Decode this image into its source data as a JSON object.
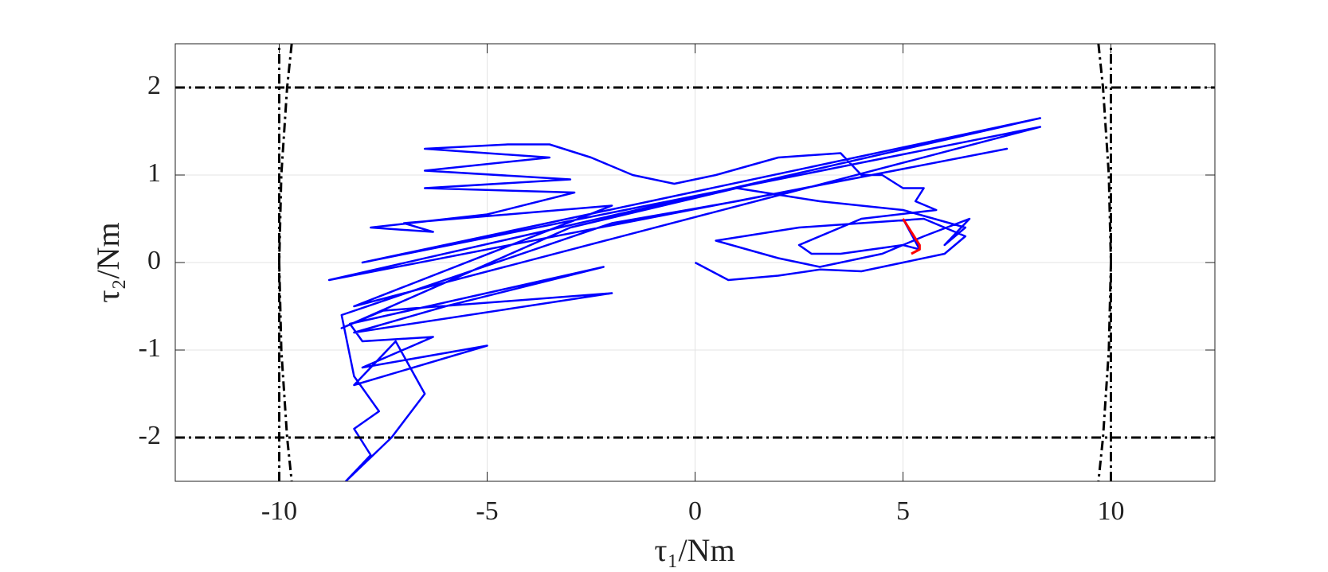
{
  "chart_data": {
    "type": "line",
    "xlabel": "τ₁/Nm",
    "ylabel": "τ₂/Nm",
    "xlim": [
      -12.5,
      12.5
    ],
    "ylim": [
      -2.5,
      2.5
    ],
    "xticks": [
      -10,
      -5,
      0,
      5,
      10
    ],
    "yticks": [
      -2,
      -1,
      0,
      1,
      2
    ],
    "grid": true,
    "series": [
      {
        "color": "#0000ff",
        "style": "solid",
        "width": 2.5,
        "x": [
          0,
          0.8,
          2,
          3,
          4,
          5,
          6,
          6.5,
          5.5,
          4,
          2.5,
          0.5,
          2,
          3,
          4.5,
          5.5,
          6.6,
          6,
          6.5,
          5,
          3,
          1,
          -3,
          -8.5,
          -7.5,
          -2,
          -8.2,
          -6,
          -2.2,
          -8.3,
          -8,
          -6.3,
          -8,
          -5,
          -8.2,
          -7.2,
          -6.5,
          -7.3,
          -8.4,
          -7.8,
          -8.2,
          -7.6,
          -8.2,
          -8.5,
          -2,
          1,
          7.5,
          -8.8,
          8.3,
          -8,
          8.3,
          -8.2,
          -2,
          -7,
          -6.3,
          -7.8,
          -5,
          -2.9,
          -6.5,
          -3,
          -6.5,
          -3.5,
          -6.5,
          -4.5,
          -3.5,
          -2.5,
          -1.5,
          -0.5,
          0.5,
          2,
          3.5,
          4,
          4.5,
          5,
          5.5,
          5.3,
          5.8,
          4,
          2.5,
          2.8,
          3.5,
          5,
          5.4,
          5
        ],
        "values": [
          0,
          -0.2,
          -0.15,
          -0.08,
          -0.1,
          0,
          0.1,
          0.3,
          0.5,
          0.45,
          0.4,
          0.25,
          0.05,
          -0.05,
          0.1,
          0.3,
          0.5,
          0.2,
          0.4,
          0.6,
          0.7,
          0.85,
          0.4,
          -0.75,
          -0.55,
          -0.35,
          -0.8,
          -0.5,
          -0.05,
          -0.7,
          -0.9,
          -0.85,
          -1.2,
          -0.95,
          -1.4,
          -0.9,
          -1.5,
          -2,
          -2.5,
          -2.2,
          -1.9,
          -1.7,
          -1.3,
          -0.6,
          0.45,
          0.7,
          1.3,
          -0.2,
          1.65,
          0,
          1.55,
          -0.5,
          0.65,
          0.45,
          0.35,
          0.4,
          0.55,
          0.8,
          0.85,
          0.95,
          1.05,
          1.2,
          1.3,
          1.35,
          1.35,
          1.2,
          1,
          0.9,
          1,
          1.2,
          1.25,
          1,
          1,
          0.85,
          0.85,
          0.7,
          0.6,
          0.5,
          0.2,
          0.1,
          0.1,
          0.2,
          0.15,
          0.5
        ]
      },
      {
        "color": "#ff0000",
        "style": "solid",
        "width": 3,
        "x": [
          5,
          5.2,
          5.4,
          5.4,
          5.2
        ],
        "values": [
          0.5,
          0.35,
          0.2,
          0.15,
          0.1
        ]
      },
      {
        "color": "#000000",
        "style": "dashdot",
        "width": 3,
        "x": [
          -12.5,
          12.5
        ],
        "values": [
          2,
          2
        ]
      },
      {
        "color": "#000000",
        "style": "dashdot",
        "width": 3,
        "x": [
          -12.5,
          12.5
        ],
        "values": [
          -2,
          -2
        ]
      },
      {
        "color": "#000000",
        "style": "dashdot",
        "width": 3,
        "x": [
          -10,
          -10
        ],
        "values": [
          -2.5,
          2.5
        ]
      },
      {
        "color": "#000000",
        "style": "dashdot",
        "width": 3,
        "x": [
          10,
          10
        ],
        "values": [
          -2.5,
          2.5
        ]
      },
      {
        "color": "#000000",
        "style": "dashdot",
        "width": 3,
        "x": [
          -9.7,
          -9.81,
          -9.95,
          -10,
          -9.95,
          -9.81,
          -9.7
        ],
        "values": [
          2.5,
          2,
          1,
          0,
          -1,
          -2,
          -2.5
        ]
      },
      {
        "color": "#000000",
        "style": "dashdot",
        "width": 3,
        "x": [
          9.7,
          9.81,
          9.95,
          10,
          9.95,
          9.81,
          9.7
        ],
        "values": [
          2.5,
          2,
          1,
          0,
          -1,
          -2,
          -2.5
        ]
      }
    ]
  }
}
